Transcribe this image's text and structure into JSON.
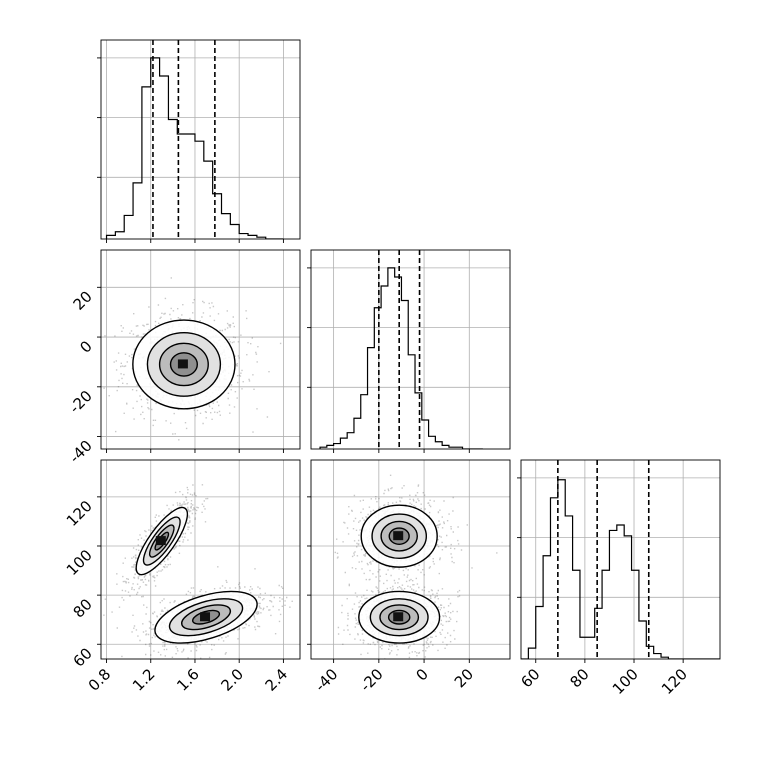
{
  "chart_data": [
    {
      "type": "histogram",
      "variable_index": 0,
      "xlim": [
        0.75,
        2.55
      ],
      "quantile_lines": [
        1.22,
        1.45,
        1.78
      ],
      "bins_start": 0.8,
      "bin_width": 0.08,
      "counts": [
        0.02,
        0.04,
        0.13,
        0.31,
        0.84,
        1.0,
        0.9,
        0.66,
        0.58,
        0.58,
        0.54,
        0.43,
        0.25,
        0.14,
        0.08,
        0.03,
        0.02,
        0.01,
        0.0,
        0.0
      ]
    },
    {
      "type": "scatter_density",
      "x_variable": 0,
      "y_variable": 1,
      "xlim": [
        0.75,
        2.55
      ],
      "ylim": [
        -45,
        35
      ],
      "clusters": [
        {
          "center": [
            1.5,
            -11
          ],
          "spread": [
            0.22,
            8.5
          ]
        }
      ]
    },
    {
      "type": "histogram",
      "variable_index": 1,
      "xlim": [
        -50,
        38
      ],
      "quantile_lines": [
        -20,
        -11,
        -2
      ],
      "bins_start": -46,
      "bin_width": 3,
      "counts": [
        0.01,
        0.02,
        0.03,
        0.06,
        0.09,
        0.17,
        0.3,
        0.56,
        0.78,
        0.9,
        1.0,
        0.95,
        0.82,
        0.52,
        0.31,
        0.16,
        0.07,
        0.04,
        0.02,
        0.01,
        0.01,
        0.0,
        0.0,
        0.0
      ]
    },
    {
      "type": "scatter_density",
      "x_variable": 0,
      "y_variable": 2,
      "xlim": [
        0.75,
        2.55
      ],
      "ylim": [
        54,
        135
      ],
      "clusters": [
        {
          "center": [
            1.3,
            102
          ],
          "spread": [
            0.11,
            6.5
          ],
          "rho": 0.8
        },
        {
          "center": [
            1.7,
            71
          ],
          "spread": [
            0.22,
            5.0
          ],
          "rho": 0.5
        }
      ]
    },
    {
      "type": "scatter_density",
      "x_variable": 1,
      "y_variable": 2,
      "xlim": [
        -50,
        38
      ],
      "ylim": [
        54,
        135
      ],
      "clusters": [
        {
          "center": [
            -11,
            104
          ],
          "spread": [
            8.0,
            6.0
          ]
        },
        {
          "center": [
            -11,
            71
          ],
          "spread": [
            8.5,
            5.0
          ]
        }
      ]
    },
    {
      "type": "histogram",
      "variable_index": 2,
      "xlim": [
        54,
        135
      ],
      "quantile_lines": [
        69,
        85,
        106
      ],
      "bins_start": 54,
      "bin_width": 3,
      "counts": [
        0.0,
        0.06,
        0.29,
        0.57,
        0.89,
        0.99,
        0.79,
        0.49,
        0.12,
        0.12,
        0.28,
        0.49,
        0.71,
        0.74,
        0.68,
        0.49,
        0.21,
        0.07,
        0.03,
        0.01,
        0.0,
        0.0,
        0.0,
        0.0,
        0.0,
        0.0,
        0.0
      ]
    }
  ],
  "axes": {
    "x_ticks": [
      [
        "0.8",
        "1.2",
        "1.6",
        "2.0",
        "2.4"
      ],
      [
        "-40",
        "-20",
        "0",
        "20"
      ],
      [
        "60",
        "80",
        "100",
        "120"
      ]
    ],
    "x_tick_values": [
      [
        0.8,
        1.2,
        1.6,
        2.0,
        2.4
      ],
      [
        -40,
        -20,
        0,
        20
      ],
      [
        60,
        80,
        100,
        120
      ]
    ],
    "y_ticks": {
      "row1": [
        "20",
        "0",
        "-20",
        "-40"
      ],
      "row1_values": [
        20,
        0,
        -20,
        -40
      ],
      "row2": [
        "120",
        "100",
        "80",
        "60"
      ],
      "row2_values": [
        120,
        100,
        80,
        60
      ]
    }
  }
}
